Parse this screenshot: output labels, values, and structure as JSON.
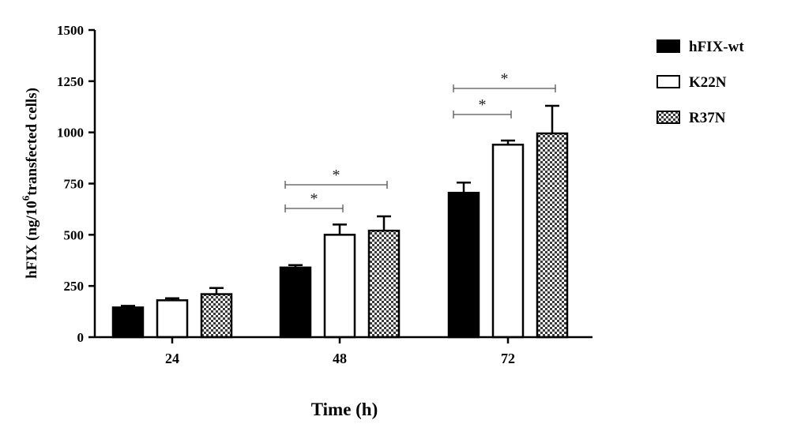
{
  "chart_data": {
    "type": "bar",
    "title": "",
    "xlabel": "Time (h)",
    "ylabel_main": "hFIX (ng/10",
    "ylabel_sup": "6",
    "ylabel_tail": "transfected cells)",
    "categories": [
      "24",
      "48",
      "72"
    ],
    "ylim": [
      0,
      1500
    ],
    "yticks": [
      0,
      250,
      500,
      750,
      1000,
      1250,
      1500
    ],
    "ytick_labels": [
      "0",
      "250",
      "500",
      "750",
      "1000",
      "1250",
      "1500"
    ],
    "series": [
      {
        "name": "hFIX-wt",
        "values": [
          145,
          340,
          705
        ],
        "errors": [
          8,
          12,
          50
        ],
        "color": "#000000",
        "pattern": "solid"
      },
      {
        "name": "K22N",
        "values": [
          180,
          500,
          940
        ],
        "errors": [
          10,
          50,
          20
        ],
        "color": "#ffffff",
        "pattern": "open"
      },
      {
        "name": "R37N",
        "values": [
          210,
          520,
          995
        ],
        "errors": [
          30,
          70,
          135
        ],
        "color": "#aaaaaa",
        "pattern": "checker"
      }
    ],
    "legend_position": "top-right",
    "significance": [
      {
        "category": "48",
        "from_series": 0,
        "to_series": 1,
        "label": "*"
      },
      {
        "category": "48",
        "from_series": 0,
        "to_series": 2,
        "label": "*"
      },
      {
        "category": "72",
        "from_series": 0,
        "to_series": 1,
        "label": "*"
      },
      {
        "category": "72",
        "from_series": 0,
        "to_series": 2,
        "label": "*"
      }
    ]
  }
}
